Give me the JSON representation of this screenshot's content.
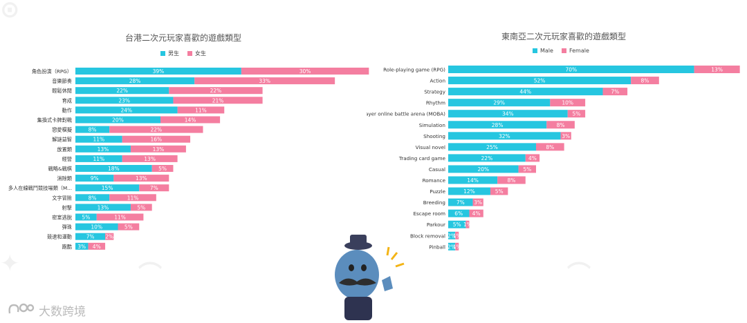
{
  "brand": {
    "name": "大数跨境",
    "logo_icon": "brand-logo-icon"
  },
  "colors": {
    "male": "#26c6e0",
    "female": "#f47ea0"
  },
  "chart_data": [
    {
      "type": "bar",
      "orientation": "horizontal",
      "stacked": true,
      "title": "台港二次元玩家喜歡的遊戲類型",
      "legend_position": "top",
      "categories": [
        "角色扮演（RPG）",
        "音樂節奏",
        "輕鬆休閒",
        "育成",
        "動作",
        "集換式卡牌對戰",
        "戀愛模擬",
        "解謎益智",
        "放置類",
        "經營",
        "戰略&戰棋",
        "消除類",
        "多人在線戰鬥競技場類（M...",
        "文字冒險",
        "射擊",
        "密室逃脫",
        "彈珠",
        "競速和運動",
        "跑酷"
      ],
      "series": [
        {
          "name": "男生",
          "values": [
            39,
            28,
            22,
            23,
            24,
            20,
            8,
            11,
            13,
            11,
            18,
            9,
            15,
            8,
            13,
            5,
            10,
            7,
            3
          ],
          "labels": [
            "39%",
            "28%",
            "22%",
            "23%",
            "24%",
            "20%",
            "8%",
            "11%",
            "13%",
            "11%",
            "18%",
            "9%",
            "15%",
            "8%",
            "13%",
            "5%",
            "10%",
            "7%",
            "3%"
          ]
        },
        {
          "name": "女生",
          "values": [
            30,
            33,
            22,
            21,
            11,
            14,
            22,
            16,
            13,
            13,
            5,
            13,
            7,
            11,
            5,
            11,
            5,
            2,
            4
          ],
          "labels": [
            "30%",
            "33%",
            "22%",
            "21%",
            "11%",
            "14%",
            "22%",
            "16%",
            "13%",
            "13%",
            "5%",
            "13%",
            "7%",
            "11%",
            "5%",
            "11%",
            "5%",
            "2%",
            "4%"
          ]
        }
      ]
    },
    {
      "type": "bar",
      "orientation": "horizontal",
      "stacked": true,
      "title": "東南亞二次元玩家喜歡的遊戲類型",
      "legend_position": "top",
      "categories": [
        "Role-playing game (RPG)",
        "Action",
        "Strategy",
        "Rhythm",
        "Multiplayer online battle arena (MOBA)",
        "Simulation",
        "Shooting",
        "Visual novel",
        "Trading card game",
        "Casual",
        "Romance",
        "Puzzle",
        "Breeding",
        "Escape room",
        "Parkour",
        "Block removal",
        "Pinball"
      ],
      "series": [
        {
          "name": "Male",
          "values": [
            70,
            52,
            44,
            29,
            34,
            28,
            32,
            25,
            22,
            20,
            14,
            12,
            7,
            6,
            5,
            2,
            2
          ],
          "labels": [
            "70%",
            "52%",
            "44%",
            "29%",
            "34%",
            "28%",
            "32%",
            "25%",
            "22%",
            "20%",
            "14%",
            "12%",
            "7%",
            "6%",
            "5%",
            "2%",
            "2%"
          ]
        },
        {
          "name": "Female",
          "values": [
            13,
            8,
            7,
            10,
            5,
            8,
            3,
            8,
            4,
            5,
            8,
            5,
            3,
            4,
            1,
            1,
            1
          ],
          "labels": [
            "13%",
            "8%",
            "7%",
            "10%",
            "5%",
            "8%",
            "3%",
            "8%",
            "4%",
            "5%",
            "8%",
            "5%",
            "3%",
            "4%",
            "1%",
            "1%",
            "1%"
          ]
        }
      ]
    }
  ]
}
